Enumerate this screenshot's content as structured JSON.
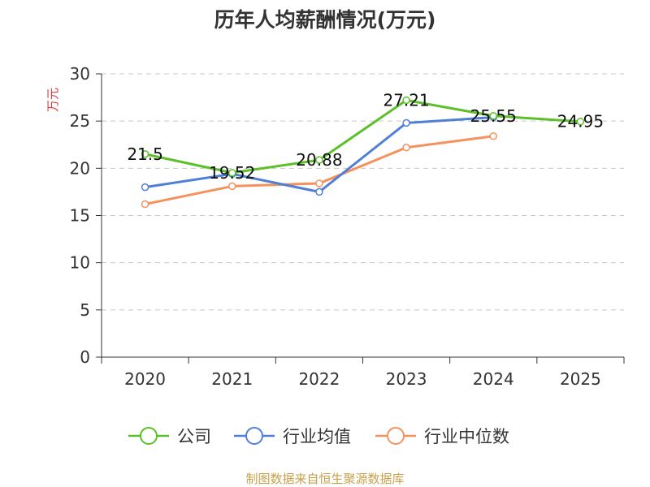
{
  "chart_data": {
    "type": "line",
    "title": "历年人均薪酬情况(万元)",
    "ylabel": "万元",
    "xlabel": "",
    "categories": [
      "2020",
      "2021",
      "2022",
      "2023",
      "2024",
      "2025"
    ],
    "ylim": [
      0,
      30
    ],
    "yticks": [
      "0",
      "5",
      "10",
      "15",
      "20",
      "25",
      "30"
    ],
    "grid": true,
    "legend_position": "bottom",
    "series": [
      {
        "name": "公司",
        "color": "#5cc02a",
        "values": [
          21.5,
          19.52,
          20.88,
          27.21,
          25.55,
          24.95
        ],
        "labels": [
          "21.5",
          "19.52",
          "20.88",
          "27.21",
          "25.55",
          "24.95"
        ]
      },
      {
        "name": "行业均值",
        "color": "#4f7fd6",
        "values": [
          18.0,
          19.4,
          17.5,
          24.8,
          25.4,
          null
        ]
      },
      {
        "name": "行业中位数",
        "color": "#f5925c",
        "values": [
          16.2,
          18.1,
          18.4,
          22.2,
          23.4,
          null
        ]
      }
    ]
  },
  "source_note": "制图数据来自恒生聚源数据库"
}
